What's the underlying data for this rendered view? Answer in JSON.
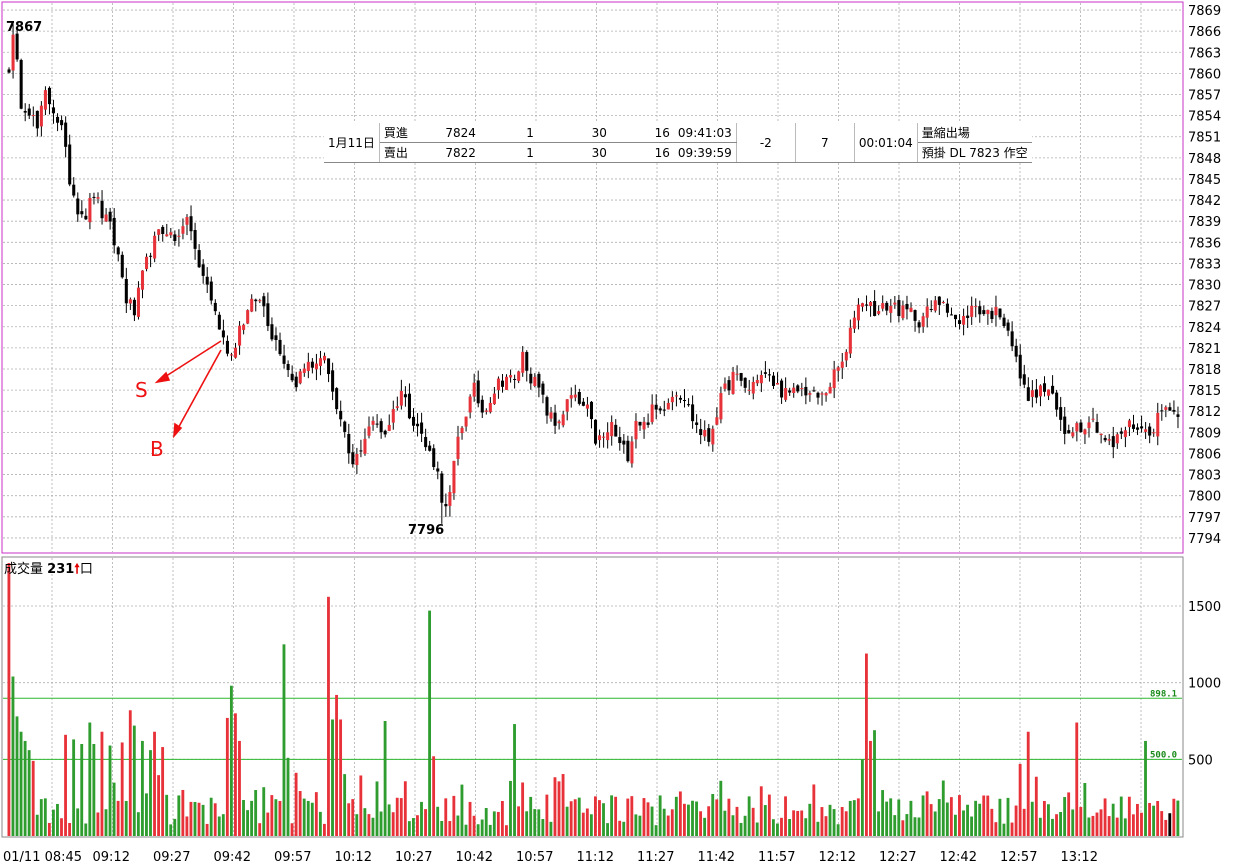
{
  "colors": {
    "up": "#e8323a",
    "down": "#000000",
    "vol_up": "#e8323a",
    "vol_down": "#2e9c2e",
    "frame": "#c832c8",
    "grid": "#b0b0b0",
    "ref": "#2db82d",
    "annot": "#ee1111"
  },
  "price_panel": {
    "ytick_labels": [
      "7869",
      "7866",
      "7863",
      "7860",
      "7857",
      "7854",
      "7851",
      "7848",
      "7845",
      "7842",
      "7839",
      "7836",
      "7833",
      "7830",
      "7827",
      "7824",
      "7821",
      "7818",
      "7815",
      "7812",
      "7809",
      "7806",
      "7803",
      "7800",
      "7797",
      "7794"
    ],
    "high_label": "7867",
    "low_label": "7796"
  },
  "xtick_labels": [
    "01/11 08:45",
    "09:12",
    "09:27",
    "09:42",
    "09:57",
    "10:12",
    "10:27",
    "10:42",
    "10:57",
    "11:12",
    "11:27",
    "11:42",
    "11:57",
    "12:12",
    "12:27",
    "12:42",
    "12:57",
    "13:12"
  ],
  "info_box": {
    "date": "1月11日",
    "rows": [
      {
        "side": "買進",
        "price": "7824",
        "qty": "1",
        "a": "30",
        "b": "16",
        "time": "09:41:03"
      },
      {
        "side": "賣出",
        "price": "7822",
        "qty": "1",
        "a": "30",
        "b": "16",
        "time": "09:39:59"
      }
    ],
    "pnl": "-2",
    "count": "7",
    "duration": "00:01:04",
    "note1": "量縮出場",
    "note2": "預掛 DL 7823 作空"
  },
  "annotations": {
    "sell_label": "S",
    "buy_label": "B"
  },
  "volume_panel": {
    "title": "成交量",
    "current": "231",
    "unit": "口",
    "ytick_labels": [
      "1500",
      "1000",
      "500"
    ],
    "ref_lines": [
      {
        "label": "898.1",
        "value": 898.1
      },
      {
        "label": "500.0",
        "value": 500.0
      }
    ]
  },
  "chart_data": [
    {
      "type": "candlestick",
      "ylim": [
        7792,
        7870
      ],
      "yticks": [
        7869,
        7866,
        7863,
        7860,
        7857,
        7854,
        7851,
        7848,
        7845,
        7842,
        7839,
        7836,
        7833,
        7830,
        7827,
        7824,
        7821,
        7818,
        7815,
        7812,
        7809,
        7806,
        7803,
        7800,
        7797,
        7794
      ],
      "anchors": [
        [
          0,
          7861
        ],
        [
          1,
          7866
        ],
        [
          3,
          7856
        ],
        [
          5,
          7855
        ],
        [
          7,
          7852
        ],
        [
          9,
          7857
        ],
        [
          11,
          7855
        ],
        [
          13,
          7852
        ],
        [
          15,
          7845
        ],
        [
          17,
          7841
        ],
        [
          19,
          7840
        ],
        [
          21,
          7843
        ],
        [
          23,
          7840
        ],
        [
          25,
          7838
        ],
        [
          27,
          7834
        ],
        [
          29,
          7828
        ],
        [
          31,
          7826
        ],
        [
          33,
          7831
        ],
        [
          35,
          7835
        ],
        [
          37,
          7837
        ],
        [
          39,
          7838
        ],
        [
          41,
          7836
        ],
        [
          43,
          7839
        ],
        [
          45,
          7838
        ],
        [
          47,
          7832
        ],
        [
          49,
          7830
        ],
        [
          51,
          7826
        ],
        [
          53,
          7822
        ],
        [
          55,
          7820
        ],
        [
          57,
          7824
        ],
        [
          59,
          7826
        ],
        [
          61,
          7828
        ],
        [
          63,
          7827
        ],
        [
          65,
          7823
        ],
        [
          67,
          7821
        ],
        [
          69,
          7818
        ],
        [
          71,
          7816
        ],
        [
          73,
          7819
        ],
        [
          75,
          7818
        ],
        [
          77,
          7820
        ],
        [
          79,
          7818
        ],
        [
          81,
          7812
        ],
        [
          83,
          7808
        ],
        [
          85,
          7804
        ],
        [
          87,
          7807
        ],
        [
          89,
          7810
        ],
        [
          91,
          7810
        ],
        [
          93,
          7809
        ],
        [
          95,
          7812
        ],
        [
          97,
          7815
        ],
        [
          99,
          7812
        ],
        [
          101,
          7810
        ],
        [
          103,
          7807
        ],
        [
          105,
          7805
        ],
        [
          107,
          7801
        ],
        [
          109,
          7800
        ],
        [
          111,
          7808
        ],
        [
          113,
          7812
        ],
        [
          115,
          7815
        ],
        [
          117,
          7812
        ],
        [
          119,
          7814
        ],
        [
          121,
          7816
        ],
        [
          123,
          7817
        ],
        [
          125,
          7816
        ],
        [
          127,
          7820
        ],
        [
          129,
          7817
        ],
        [
          131,
          7815
        ],
        [
          133,
          7812
        ],
        [
          135,
          7810
        ],
        [
          137,
          7812
        ],
        [
          139,
          7814
        ],
        [
          141,
          7813
        ],
        [
          143,
          7812
        ],
        [
          145,
          7808
        ],
        [
          147,
          7808
        ],
        [
          149,
          7810
        ],
        [
          151,
          7807
        ],
        [
          153,
          7806
        ],
        [
          155,
          7811
        ],
        [
          157,
          7810
        ],
        [
          159,
          7812
        ],
        [
          161,
          7812
        ],
        [
          163,
          7814
        ],
        [
          165,
          7815
        ],
        [
          167,
          7814
        ],
        [
          169,
          7811
        ],
        [
          171,
          7809
        ],
        [
          173,
          7808
        ],
        [
          175,
          7812
        ],
        [
          177,
          7815
        ],
        [
          179,
          7817
        ],
        [
          181,
          7816
        ],
        [
          183,
          7815
        ],
        [
          185,
          7817
        ],
        [
          187,
          7817
        ],
        [
          189,
          7816
        ],
        [
          191,
          7815
        ],
        [
          193,
          7814
        ],
        [
          195,
          7815
        ],
        [
          197,
          7815
        ],
        [
          199,
          7814
        ],
        [
          201,
          7814
        ],
        [
          203,
          7816
        ],
        [
          205,
          7818
        ],
        [
          207,
          7820
        ],
        [
          209,
          7826
        ],
        [
          211,
          7828
        ],
        [
          213,
          7827
        ],
        [
          215,
          7826
        ],
        [
          217,
          7827
        ],
        [
          219,
          7827
        ],
        [
          221,
          7826
        ],
        [
          223,
          7826
        ],
        [
          225,
          7825
        ],
        [
          227,
          7826
        ],
        [
          229,
          7827
        ],
        [
          231,
          7828
        ],
        [
          233,
          7826
        ],
        [
          235,
          7824
        ],
        [
          237,
          7826
        ],
        [
          239,
          7827
        ],
        [
          241,
          7826
        ],
        [
          243,
          7826
        ],
        [
          245,
          7826
        ],
        [
          247,
          7824
        ],
        [
          249,
          7819
        ],
        [
          251,
          7815
        ],
        [
          253,
          7814
        ],
        [
          255,
          7815
        ],
        [
          257,
          7815
        ],
        [
          259,
          7812
        ],
        [
          261,
          7809
        ],
        [
          263,
          7810
        ],
        [
          265,
          7810
        ],
        [
          267,
          7811
        ],
        [
          269,
          7810
        ],
        [
          271,
          7808
        ],
        [
          273,
          7807
        ],
        [
          275,
          7809
        ],
        [
          277,
          7810
        ],
        [
          279,
          7810
        ],
        [
          281,
          7809
        ],
        [
          283,
          7810
        ],
        [
          285,
          7812
        ],
        [
          287,
          7813
        ],
        [
          289,
          7811
        ]
      ],
      "high": 7867,
      "low": 7796
    },
    {
      "type": "bar",
      "title": "成交量",
      "ylim": [
        0,
        1800
      ],
      "yticks": [
        1500,
        1000,
        500
      ],
      "hlines": [
        898.1,
        500.0
      ],
      "spikes": [
        [
          0,
          1780
        ],
        [
          1,
          1040
        ],
        [
          2,
          780
        ],
        [
          3,
          680
        ],
        [
          4,
          620
        ],
        [
          5,
          560
        ],
        [
          6,
          490
        ],
        [
          14,
          660
        ],
        [
          16,
          630
        ],
        [
          18,
          600
        ],
        [
          20,
          740
        ],
        [
          21,
          600
        ],
        [
          23,
          680
        ],
        [
          25,
          590
        ],
        [
          28,
          610
        ],
        [
          30,
          820
        ],
        [
          31,
          720
        ],
        [
          33,
          620
        ],
        [
          35,
          560
        ],
        [
          36,
          680
        ],
        [
          38,
          580
        ],
        [
          54,
          770
        ],
        [
          55,
          980
        ],
        [
          56,
          800
        ],
        [
          57,
          620
        ],
        [
          68,
          1250
        ],
        [
          69,
          510
        ],
        [
          79,
          1560
        ],
        [
          80,
          760
        ],
        [
          81,
          920
        ],
        [
          82,
          760
        ],
        [
          93,
          750
        ],
        [
          104,
          1470
        ],
        [
          105,
          520
        ],
        [
          125,
          730
        ],
        [
          211,
          500
        ],
        [
          212,
          1190
        ],
        [
          213,
          620
        ],
        [
          214,
          690
        ],
        [
          250,
          470
        ],
        [
          252,
          680
        ],
        [
          264,
          740
        ],
        [
          281,
          620
        ]
      ]
    }
  ]
}
